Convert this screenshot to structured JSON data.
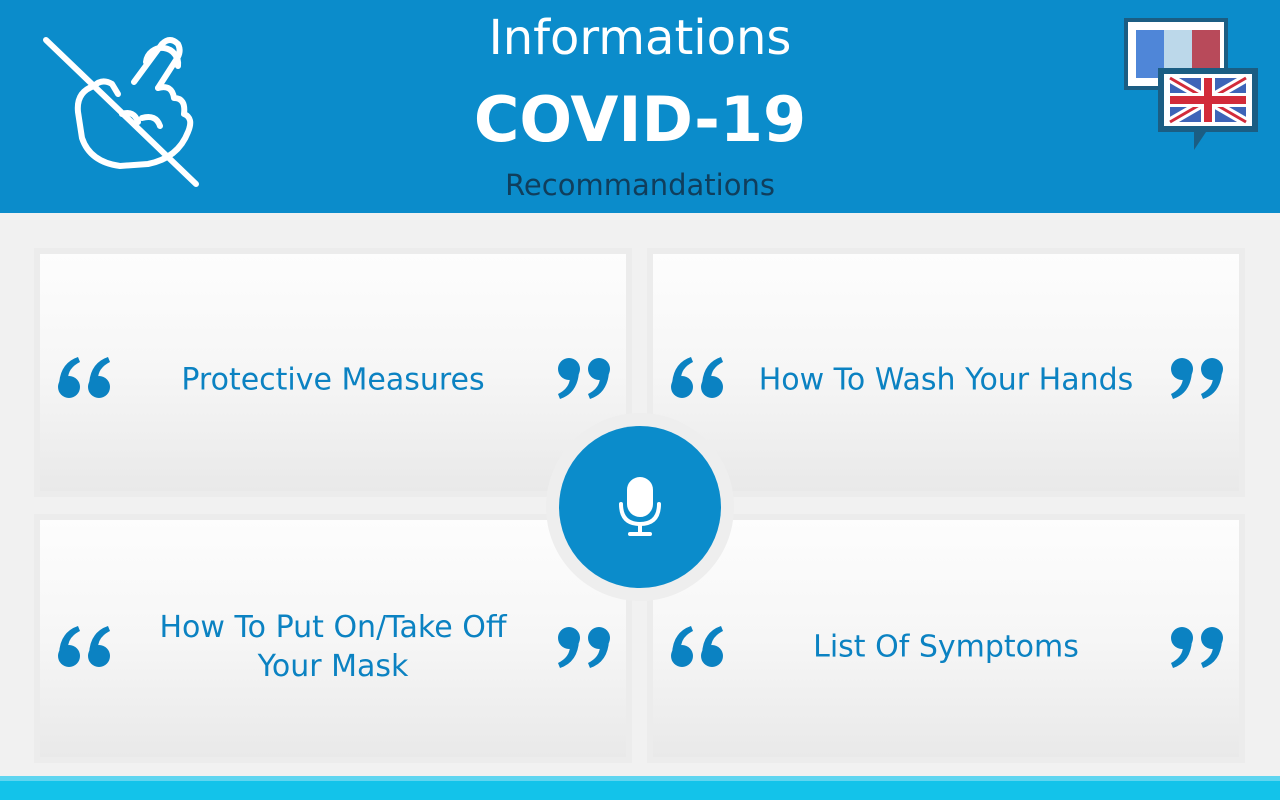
{
  "header": {
    "title_line_1": "Informations",
    "title_line_2": "COVID-19",
    "subtitle": "Recommandations",
    "logo_icon": "no-touch-hand-icon",
    "language_switch": {
      "icon": "language-flags-icon",
      "from_language": "French",
      "to_language": "English"
    }
  },
  "cards": [
    {
      "label": "Protective Measures"
    },
    {
      "label": "How To Wash Your Hands"
    },
    {
      "label": "How To Put On/Take Off Your Mask"
    },
    {
      "label": "List Of Symptoms"
    }
  ],
  "mic_button": {
    "icon": "microphone-icon"
  },
  "colors": {
    "primary": "#0b8ccb",
    "card_text": "#0b82c2",
    "subtitle": "#103e5c",
    "footer": "#13c3ea",
    "background": "#f1f1f1"
  }
}
